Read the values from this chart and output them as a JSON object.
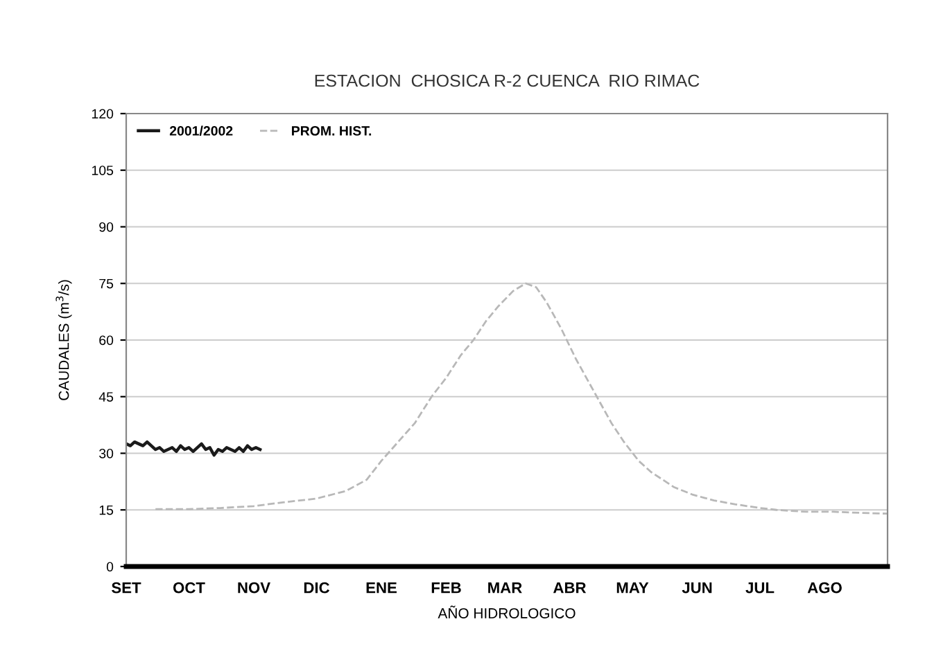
{
  "chart_data": {
    "type": "line",
    "title": "ESTACION  CHOSICA R-2 CUENCA  RIO RIMAC",
    "xlabel": "AÑO HIDROLOGICO",
    "ylabel": "CAUDALES (m$^{3}$/s)",
    "xlim": [
      "2001-09-01",
      "2002-08-31"
    ],
    "xticks": [
      {
        "value": "2001-09-01",
        "label": "SET"
      },
      {
        "value": "2001-10-01",
        "label": "OCT"
      },
      {
        "value": "2001-11-01",
        "label": "NOV"
      },
      {
        "value": "2001-12-01",
        "label": "DIC"
      },
      {
        "value": "2002-01-01",
        "label": "ENE"
      },
      {
        "value": "2002-02-01",
        "label": "FEB"
      },
      {
        "value": "2002-03-01",
        "label": "MAR"
      },
      {
        "value": "2002-04-01",
        "label": "ABR"
      },
      {
        "value": "2002-05-01",
        "label": "MAY"
      },
      {
        "value": "2002-06-01",
        "label": "JUN"
      },
      {
        "value": "2002-07-01",
        "label": "JUL"
      },
      {
        "value": "2002-08-01",
        "label": "AGO"
      }
    ],
    "ylim": [
      0,
      120
    ],
    "yticks": [
      0,
      15,
      30,
      45,
      60,
      75,
      90,
      105,
      120
    ],
    "grid": "y",
    "legend": "top left",
    "series": [
      {
        "name": "2001/2002",
        "color": "#1a1a1a",
        "line_style": "solid",
        "x": [
          "2001-09-01",
          "2001-09-03",
          "2001-09-05",
          "2001-09-07",
          "2001-09-09",
          "2001-09-11",
          "2001-09-13",
          "2001-09-15",
          "2001-09-17",
          "2001-09-19",
          "2001-09-21",
          "2001-09-23",
          "2001-09-25",
          "2001-09-27",
          "2001-09-29",
          "2001-10-01",
          "2001-10-03",
          "2001-10-05",
          "2001-10-07",
          "2001-10-09",
          "2001-10-11",
          "2001-10-13",
          "2001-10-15",
          "2001-10-17",
          "2001-10-19",
          "2001-10-21",
          "2001-10-23",
          "2001-10-25",
          "2001-10-27",
          "2001-10-29",
          "2001-10-31",
          "2001-11-02",
          "2001-11-04"
        ],
        "values": [
          32.5,
          32,
          33,
          32.5,
          32,
          33,
          32,
          31,
          31.5,
          30.5,
          31,
          31.5,
          30.5,
          32,
          31,
          31.5,
          30.5,
          31.5,
          32.5,
          31,
          31.5,
          29.5,
          31,
          30.5,
          31.5,
          31,
          30.5,
          31.5,
          30.5,
          32,
          31,
          31.5,
          31
        ]
      },
      {
        "name": "PROM. HIST.",
        "color": "#b8b8b8",
        "line_style": "dashed",
        "x": [
          "2001-09-15",
          "2001-10-01",
          "2001-10-16",
          "2001-11-01",
          "2001-11-15",
          "2001-12-01",
          "2001-12-15",
          "2001-12-25",
          "2002-01-01",
          "2002-01-09",
          "2002-01-17",
          "2002-01-25",
          "2002-02-01",
          "2002-02-08",
          "2002-02-14",
          "2002-02-20",
          "2002-02-26",
          "2002-03-05",
          "2002-03-11",
          "2002-03-16",
          "2002-03-21",
          "2002-03-28",
          "2002-04-04",
          "2002-04-14",
          "2002-04-21",
          "2002-04-27",
          "2002-05-04",
          "2002-05-10",
          "2002-05-21",
          "2002-05-30",
          "2002-06-09",
          "2002-06-19",
          "2002-07-01",
          "2002-07-09",
          "2002-07-23",
          "2002-08-05",
          "2002-08-19",
          "2002-08-31"
        ],
        "values": [
          15.2,
          15.2,
          15.5,
          16,
          17,
          18,
          20,
          23,
          28,
          33,
          38,
          45,
          50,
          56,
          60,
          65,
          69,
          73,
          75,
          74,
          70,
          63,
          55,
          45,
          38,
          33,
          28,
          25,
          21,
          19,
          17.5,
          16.5,
          15.5,
          15,
          14.5,
          14.5,
          14.2,
          14
        ]
      }
    ]
  }
}
